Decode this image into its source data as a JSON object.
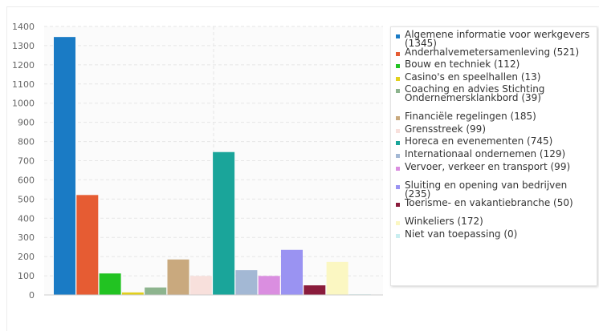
{
  "chart_data": {
    "type": "bar",
    "title": "",
    "xlabel": "",
    "ylabel": "",
    "ylim": [
      0,
      1400
    ],
    "yticks": [
      0,
      100,
      200,
      300,
      400,
      500,
      600,
      700,
      800,
      900,
      1000,
      1100,
      1200,
      1300,
      1400
    ],
    "grid": true,
    "legend_position": "right",
    "series": [
      {
        "name": "Algemene informatie voor werkgevers (1345)",
        "value": 1345,
        "color": "#1a7bc5"
      },
      {
        "name": "Anderhalvemetersamenleving (521)",
        "value": 521,
        "color": "#e65c33"
      },
      {
        "name": "Bouw en techniek (112)",
        "value": 112,
        "color": "#22c322"
      },
      {
        "name": "Casino's en speelhallen (13)",
        "value": 13,
        "color": "#e2d01c"
      },
      {
        "name": "Coaching en advies Stichting Ondernemersklankbord (39)",
        "value": 39,
        "color": "#8db48e"
      },
      {
        "name": "Financiële regelingen (185)",
        "value": 185,
        "color": "#c9a97e"
      },
      {
        "name": "Grensstreek (99)",
        "value": 99,
        "color": "#f8e0dc"
      },
      {
        "name": "Horeca en evenementen (745)",
        "value": 745,
        "color": "#1aa59a"
      },
      {
        "name": "Internationaal ondernemen (129)",
        "value": 129,
        "color": "#a3b8d4"
      },
      {
        "name": "Vervoer, verkeer en transport (99)",
        "value": 99,
        "color": "#da8ee0"
      },
      {
        "name": "Sluiting en opening van bedrijven (235)",
        "value": 235,
        "color": "#9a93f2"
      },
      {
        "name": "Toerisme- en vakantiebranche (50)",
        "value": 50,
        "color": "#8a1c3c"
      },
      {
        "name": "Winkeliers (172)",
        "value": 172,
        "color": "#fbf7c2"
      },
      {
        "name": "Niet van toepassing (0)",
        "value": 0,
        "color": "#c9eef0"
      }
    ]
  }
}
